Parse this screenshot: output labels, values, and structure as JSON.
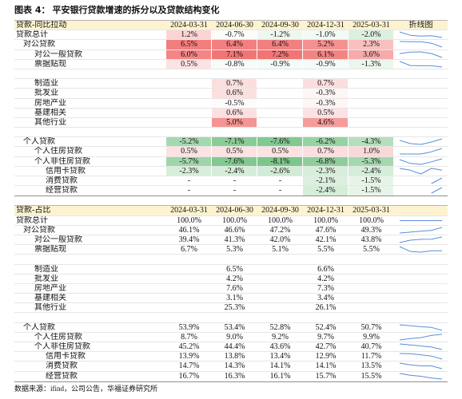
{
  "title": {
    "label": "图表 4：",
    "text": "平安银行贷款增速的拆分以及贷款结构变化"
  },
  "colors": {
    "header_bg": "#fdf3d0",
    "heat_positive": "#f27474",
    "heat_negative": "#7cc689",
    "sparkline": "#5b8ed6",
    "text": "#111111"
  },
  "chart_data": {
    "type": "table",
    "sections": [
      {
        "header": "贷款-同比拉动",
        "columns": [
          "2024-03-31",
          "2024-06-30",
          "2024-09-30",
          "2024-12-31",
          "2025-03-31"
        ],
        "sparkline_header": "折线图",
        "heatmap": true,
        "rows": [
          {
            "label": "贷款总计",
            "depth": 0,
            "values": [
              "1.2%",
              "-0.7%",
              "-1.2%",
              "-1.0%",
              "-2.0%"
            ],
            "sparkline": true
          },
          {
            "label": "对公贷款",
            "depth": 1,
            "values": [
              "6.5%",
              "6.4%",
              "6.4%",
              "5.2%",
              "2.3%"
            ],
            "sparkline": true
          },
          {
            "label": "对公一般贷款",
            "depth": 2,
            "values": [
              "6.0%",
              "7.1%",
              "7.2%",
              "6.1%",
              "3.6%"
            ],
            "sparkline": true
          },
          {
            "label": "票据贴现",
            "depth": 2,
            "values": [
              "0.5%",
              "-0.8%",
              "-0.9%",
              "-0.9%",
              "-1.3%"
            ],
            "sparkline": true
          },
          {
            "spacer": true
          },
          {
            "label": "制造业",
            "depth": 2,
            "values": [
              "",
              "0.7%",
              "",
              "0.7%",
              ""
            ],
            "sparkline": false
          },
          {
            "label": "批发业",
            "depth": 2,
            "values": [
              "",
              "0.6%",
              "",
              "-0.3%",
              ""
            ],
            "sparkline": false
          },
          {
            "label": "房地产业",
            "depth": 2,
            "values": [
              "",
              "-0.5%",
              "",
              "-0.3%",
              ""
            ],
            "sparkline": false
          },
          {
            "label": "基建相关",
            "depth": 2,
            "values": [
              "",
              "0.6%",
              "",
              "0.5%",
              ""
            ],
            "sparkline": false
          },
          {
            "label": "其他行业",
            "depth": 2,
            "values": [
              "",
              "5.0%",
              "",
              "4.6%",
              ""
            ],
            "sparkline": false
          },
          {
            "spacer": true
          },
          {
            "label": "个人贷款",
            "depth": 1,
            "values": [
              "-5.2%",
              "-7.1%",
              "-7.6%",
              "-6.2%",
              "-4.3%"
            ],
            "sparkline": true
          },
          {
            "label": "个人住房贷款",
            "depth": 2,
            "values": [
              "0.5%",
              "0.5%",
              "0.5%",
              "0.7%",
              "1.0%"
            ],
            "sparkline": true
          },
          {
            "label": "个人非住房贷款",
            "depth": 2,
            "values": [
              "-5.7%",
              "-7.6%",
              "-8.1%",
              "-6.8%",
              "-5.3%"
            ],
            "sparkline": true
          },
          {
            "label": "信用卡贷款",
            "depth": 3,
            "values": [
              "-2.3%",
              "-2.4%",
              "-2.6%",
              "-2.3%",
              "-2.4%"
            ],
            "sparkline": true
          },
          {
            "label": "消费贷款",
            "depth": 3,
            "values": [
              "-",
              "-",
              "-",
              "-2.1%",
              "-1.5%"
            ],
            "sparkline": true
          },
          {
            "label": "经营贷款",
            "depth": 3,
            "values": [
              "-",
              "-",
              "-",
              "-2.4%",
              "-1.5%"
            ],
            "sparkline": true
          }
        ]
      },
      {
        "header": "贷款-占比",
        "columns": [
          "2024-03-31",
          "2024-06-30",
          "2024-09-30",
          "2024-12-31",
          "2025-03-31"
        ],
        "heatmap": false,
        "rows": [
          {
            "label": "贷款总计",
            "depth": 0,
            "values": [
              "100.0%",
              "100.0%",
              "100.0%",
              "100.0%",
              "100.0%"
            ],
            "sparkline": true
          },
          {
            "label": "对公贷款",
            "depth": 1,
            "values": [
              "46.1%",
              "46.6%",
              "47.2%",
              "47.6%",
              "49.3%"
            ],
            "sparkline": true
          },
          {
            "label": "对公一般贷款",
            "depth": 2,
            "values": [
              "39.4%",
              "41.3%",
              "42.0%",
              "42.1%",
              "43.8%"
            ],
            "sparkline": true
          },
          {
            "label": "票据贴现",
            "depth": 2,
            "values": [
              "6.7%",
              "5.3%",
              "5.1%",
              "5.5%",
              "5.5%"
            ],
            "sparkline": true
          },
          {
            "spacer": true
          },
          {
            "label": "制造业",
            "depth": 2,
            "values": [
              "",
              "6.5%",
              "",
              "6.6%",
              ""
            ],
            "sparkline": false
          },
          {
            "label": "批发业",
            "depth": 2,
            "values": [
              "",
              "4.2%",
              "",
              "4.2%",
              ""
            ],
            "sparkline": false
          },
          {
            "label": "房地产业",
            "depth": 2,
            "values": [
              "",
              "7.6%",
              "",
              "7.3%",
              ""
            ],
            "sparkline": false
          },
          {
            "label": "基建相关",
            "depth": 2,
            "values": [
              "",
              "3.1%",
              "",
              "3.4%",
              ""
            ],
            "sparkline": false
          },
          {
            "label": "其他行业",
            "depth": 2,
            "values": [
              "",
              "25.3%",
              "",
              "26.1%",
              ""
            ],
            "sparkline": false
          },
          {
            "spacer": true
          },
          {
            "label": "个人贷款",
            "depth": 1,
            "values": [
              "53.9%",
              "53.4%",
              "52.8%",
              "52.4%",
              "50.7%"
            ],
            "sparkline": true
          },
          {
            "label": "个人住房贷款",
            "depth": 2,
            "values": [
              "8.7%",
              "9.0%",
              "9.2%",
              "9.7%",
              "9.9%"
            ],
            "sparkline": true
          },
          {
            "label": "个人非住房贷款",
            "depth": 2,
            "values": [
              "45.2%",
              "44.4%",
              "43.6%",
              "42.7%",
              "40.7%"
            ],
            "sparkline": true
          },
          {
            "label": "信用卡贷款",
            "depth": 3,
            "values": [
              "13.9%",
              "13.8%",
              "13.4%",
              "12.9%",
              "11.7%"
            ],
            "sparkline": true
          },
          {
            "label": "消费贷款",
            "depth": 3,
            "values": [
              "14.7%",
              "14.3%",
              "14.1%",
              "14.1%",
              "13.5%"
            ],
            "sparkline": true
          },
          {
            "label": "经营贷款",
            "depth": 3,
            "values": [
              "16.7%",
              "16.3%",
              "16.1%",
              "15.7%",
              "15.5%"
            ],
            "sparkline": true
          }
        ]
      }
    ]
  },
  "footer": "数据来源：ifind，公司公告，华福证券研究所"
}
